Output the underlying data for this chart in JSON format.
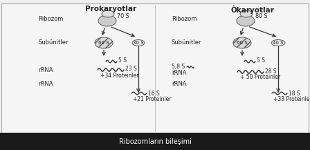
{
  "title_prokaryot": "Prokaryotlar",
  "title_okaryot": "Ökaryotlar",
  "footer_text": "Ribozomların bileşimi",
  "bg_color": "#f0f0f0",
  "footer_bg": "#1a1a1a",
  "footer_text_color": "#ffffff",
  "border_color": "#999999",
  "prokaryot": {
    "ribosom_label": "Ribozom",
    "ribosom_s": "70 S",
    "subunit_label": "Subünitler",
    "large_s": "60 S",
    "small_s": "30 S",
    "rrna_label": "rRNA",
    "rrna2_label": "rRNA",
    "s5": "5 S",
    "s23": "23 S",
    "s16": "16 S",
    "prot_large": "+34 Proteinler",
    "prot_small": "+21 Proteinler"
  },
  "okaryot": {
    "ribosom_label": "Ribozom",
    "ribosom_s": "80 S",
    "subunit_label": "Subünitler",
    "large_s": "60 S",
    "small_s": "40 S",
    "rrna_label": "rRNA",
    "rrna2_label": "rRNA",
    "s5": "5 S",
    "s58": "5,8 S",
    "s28": "28 S",
    "s18": "18 S",
    "prot_large": "+ 50 Proteinler",
    "prot_small": "+33 Proteinler"
  }
}
